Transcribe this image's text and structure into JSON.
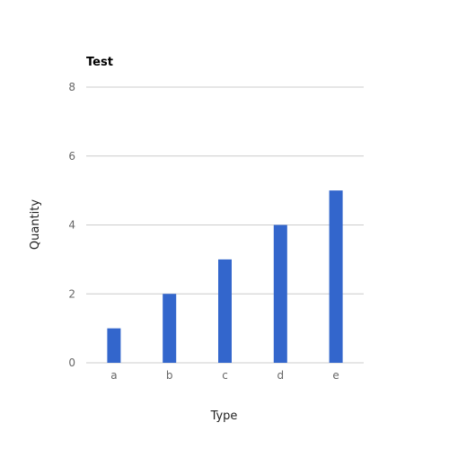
{
  "chart_data": {
    "type": "bar",
    "title": "Test",
    "xlabel": "Type",
    "ylabel": "Quantity",
    "categories": [
      "a",
      "b",
      "c",
      "d",
      "e"
    ],
    "values": [
      1,
      2,
      3,
      4,
      5
    ],
    "ylim": [
      0,
      8
    ],
    "yticks": [
      "0",
      "2",
      "4",
      "6",
      "8"
    ],
    "grid": true,
    "legend": "none",
    "colors": {
      "bar": "#3366cc",
      "grid": "#cccccc",
      "tick_text": "#666666",
      "title": "#000000"
    }
  }
}
